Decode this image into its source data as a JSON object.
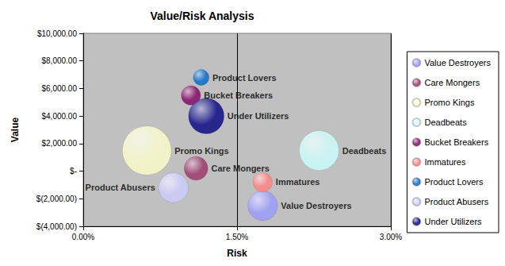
{
  "chart_data": {
    "type": "bubble",
    "title": "Value/Risk Analysis",
    "x_label": "Risk",
    "y_label": "Value",
    "xlim": [
      0,
      3
    ],
    "xticks": [
      {
        "value": 0,
        "label": "0.00%"
      },
      {
        "value": 1.5,
        "label": "1.50%"
      },
      {
        "value": 3,
        "label": "3.00%"
      }
    ],
    "ylim": [
      -4000,
      10000
    ],
    "yticks": [
      {
        "value": -4000,
        "label": "$(4,000.00)"
      },
      {
        "value": -2000,
        "label": "$(2,000.00)"
      },
      {
        "value": 0,
        "label": "$-"
      },
      {
        "value": 2000,
        "label": "$2,000.00"
      },
      {
        "value": 4000,
        "label": "$4,000.00"
      },
      {
        "value": 6000,
        "label": "$6,000.00"
      },
      {
        "value": 8000,
        "label": "$8,000.00"
      },
      {
        "value": 10000,
        "label": "$10,000.00"
      }
    ],
    "grid": true,
    "legend": "right",
    "data_labels": true,
    "series": [
      {
        "name": "Value Destroyers",
        "color": "#9999ff",
        "x": [
          1.75
        ],
        "values": [
          -2500
        ],
        "sizes": [
          14
        ]
      },
      {
        "name": "Care Mongers",
        "color": "#993366",
        "x": [
          1.1
        ],
        "values": [
          200
        ],
        "sizes": [
          9
        ]
      },
      {
        "name": "Promo Kings",
        "color": "#ffffcc",
        "x": [
          0.62
        ],
        "values": [
          1500
        ],
        "sizes": [
          38
        ]
      },
      {
        "name": "Deadbeats",
        "color": "#ccffff",
        "x": [
          2.3
        ],
        "values": [
          1500
        ],
        "sizes": [
          25
        ]
      },
      {
        "name": "Bucket Breakers",
        "color": "#800060",
        "x": [
          1.05
        ],
        "values": [
          5500
        ],
        "sizes": [
          6
        ]
      },
      {
        "name": "Immatures",
        "color": "#ff8080",
        "x": [
          1.75
        ],
        "values": [
          -800
        ],
        "sizes": [
          6
        ]
      },
      {
        "name": "Product Lovers",
        "color": "#0066cc",
        "x": [
          1.15
        ],
        "values": [
          6800
        ],
        "sizes": [
          4
        ]
      },
      {
        "name": "Product Abusers",
        "color": "#ccccff",
        "x": [
          0.88
        ],
        "values": [
          -1200
        ],
        "sizes": [
          14
        ]
      },
      {
        "name": "Under Utilizers",
        "color": "#000080",
        "x": [
          1.2
        ],
        "values": [
          4000
        ],
        "sizes": [
          20
        ]
      }
    ]
  }
}
